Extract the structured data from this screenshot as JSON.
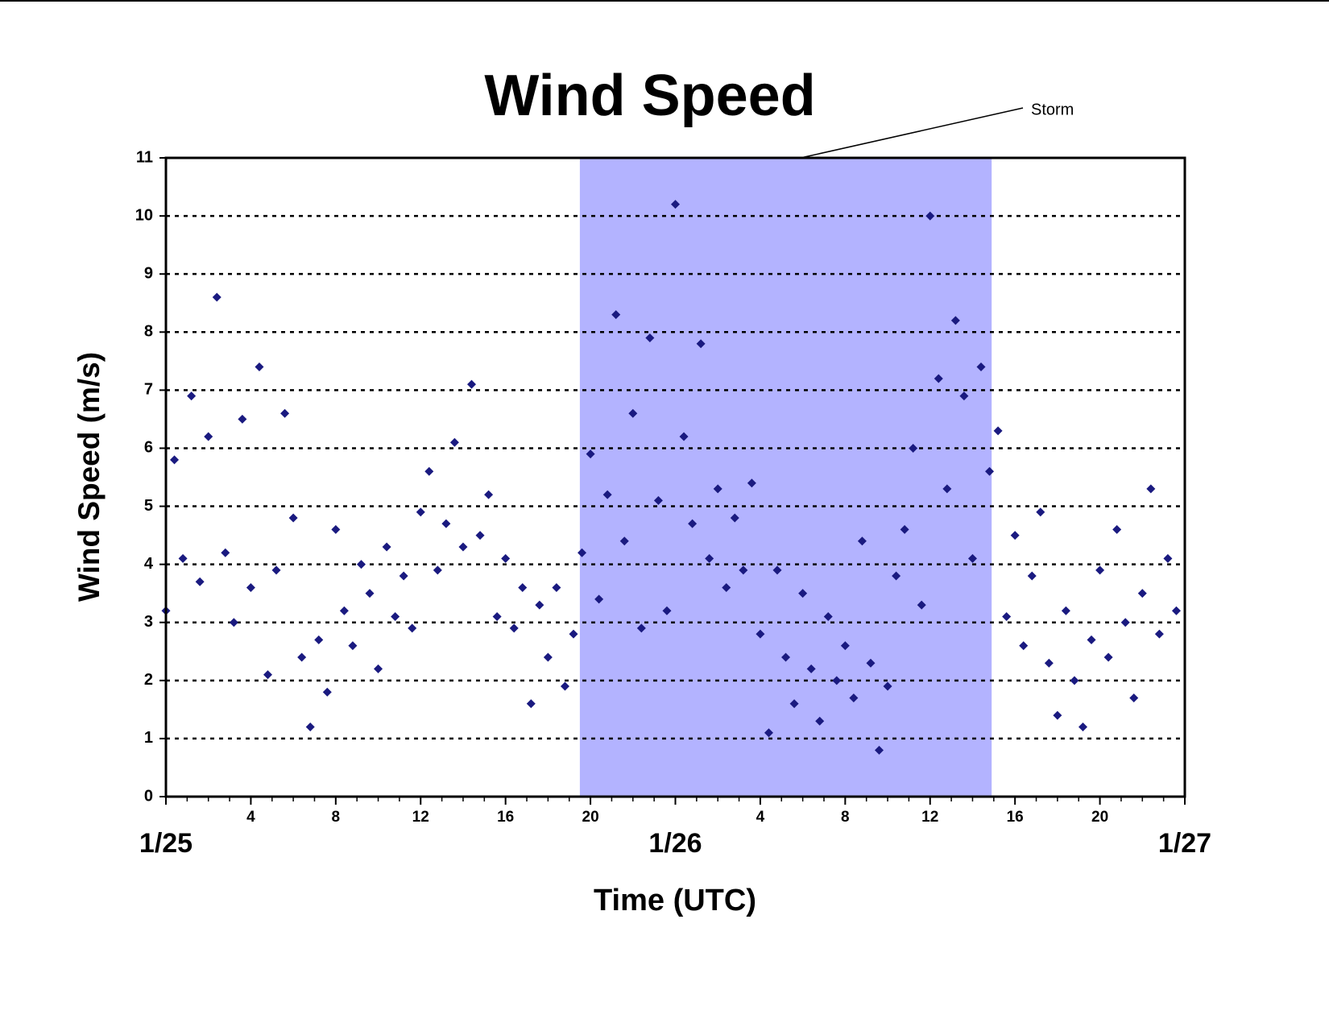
{
  "chart_data": {
    "type": "scatter",
    "title": "Wind Speed",
    "y_label": "Wind Speed (m/s)",
    "x_label": "Time (UTC)",
    "annotation": "Storm",
    "shaded_region": {
      "x": [
        19.5,
        38.9
      ],
      "color": "#b3b3ff"
    },
    "color": "#1a1a80",
    "xlim": [
      0,
      48
    ],
    "ylim": [
      0,
      11
    ],
    "xticks": [
      4,
      8,
      12,
      16,
      20,
      {
        "value": 28,
        "label": "4"
      },
      {
        "value": 32,
        "label": "8"
      },
      {
        "value": 36,
        "label": "12"
      },
      {
        "value": 40,
        "label": "16"
      },
      {
        "value": 44,
        "label": "20"
      }
    ],
    "x_day_labels": [
      {
        "value": 0,
        "label": "1/25"
      },
      {
        "value": 24,
        "label": "1/26"
      },
      {
        "value": 48,
        "label": "1/27"
      }
    ],
    "minor_ticks": true,
    "yticks": [
      0,
      1,
      2,
      3,
      4,
      5,
      6,
      7,
      8,
      9,
      10,
      11
    ],
    "grid": true,
    "x": [
      0,
      0.4,
      0.8,
      1.2,
      1.6,
      2,
      2.4,
      2.8,
      3.2,
      3.6,
      4,
      4.4,
      4.8,
      5.2,
      5.6,
      6,
      6.4,
      6.8,
      7.2,
      7.6,
      8,
      8.4,
      8.8,
      9.2,
      9.6,
      10,
      10.4,
      10.8,
      11.2,
      11.6,
      12,
      12.4,
      12.8,
      13.2,
      13.6,
      14,
      14.4,
      14.8,
      15.2,
      15.6,
      16,
      16.4,
      16.8,
      17.2,
      17.6,
      18,
      18.4,
      18.8,
      19.2,
      19.6,
      20,
      20.4,
      20.8,
      21.2,
      21.6,
      22,
      22.4,
      22.8,
      23.2,
      23.6,
      24,
      24.4,
      24.8,
      25.2,
      25.6,
      26,
      26.4,
      26.8,
      27.2,
      27.6,
      28,
      28.4,
      28.8,
      29.2,
      29.6,
      30,
      30.4,
      30.8,
      31.2,
      31.6,
      32,
      32.4,
      32.8,
      33.2,
      33.6,
      34,
      34.4,
      34.8,
      35.2,
      35.6,
      36,
      36.4,
      36.8,
      37.2,
      37.6,
      38,
      38.4,
      38.8,
      39.2,
      39.6,
      40,
      40.4,
      40.8,
      41.2,
      41.6,
      42,
      42.4,
      42.8,
      43.2,
      43.6,
      44,
      44.4,
      44.8,
      45.2,
      45.6,
      46,
      46.4,
      46.8,
      47.2,
      47.6
    ],
    "values": [
      3.2,
      5.8,
      4.1,
      6.9,
      3.7,
      6.2,
      8.6,
      4.2,
      3.0,
      6.5,
      3.6,
      7.4,
      2.1,
      3.9,
      6.6,
      4.8,
      2.4,
      1.2,
      2.7,
      1.8,
      4.6,
      3.2,
      2.6,
      4.0,
      3.5,
      2.2,
      4.3,
      3.1,
      3.8,
      2.9,
      4.9,
      5.6,
      3.9,
      4.7,
      6.1,
      4.3,
      7.1,
      4.5,
      5.2,
      3.1,
      4.1,
      2.9,
      3.6,
      1.6,
      3.3,
      2.4,
      3.6,
      1.9,
      2.8,
      4.2,
      5.9,
      3.4,
      5.2,
      8.3,
      4.4,
      6.6,
      2.9,
      7.9,
      5.1,
      3.2,
      10.2,
      6.2,
      4.7,
      7.8,
      4.1,
      5.3,
      3.6,
      4.8,
      3.9,
      5.4,
      2.8,
      1.1,
      3.9,
      2.4,
      1.6,
      3.5,
      2.2,
      1.3,
      3.1,
      2.0,
      2.6,
      1.7,
      4.4,
      2.3,
      0.8,
      1.9,
      3.8,
      4.6,
      6.0,
      3.3,
      10.0,
      7.2,
      5.3,
      8.2,
      6.9,
      4.1,
      7.4,
      5.6,
      6.3,
      3.1,
      4.5,
      2.6,
      3.8,
      4.9,
      2.3,
      1.4,
      3.2,
      2.0,
      1.2,
      2.7,
      3.9,
      2.4,
      4.6,
      3.0,
      1.7,
      3.5,
      5.3,
      2.8,
      4.1,
      3.2
    ]
  }
}
